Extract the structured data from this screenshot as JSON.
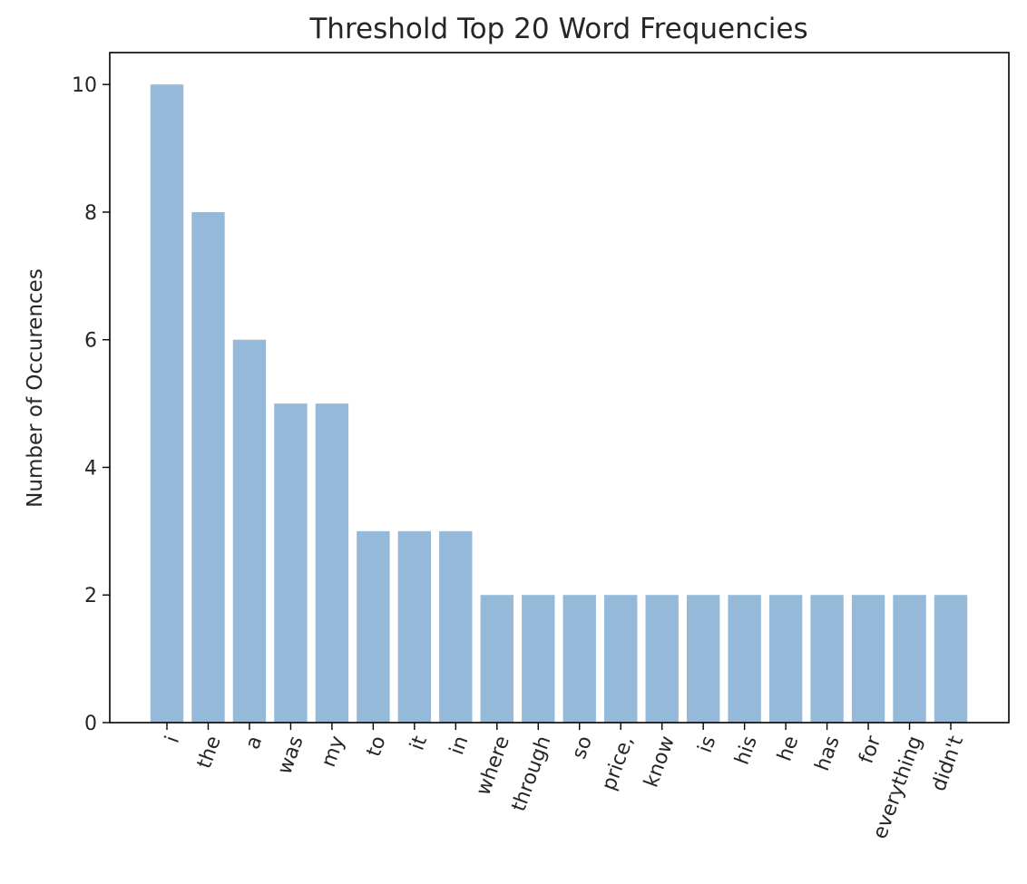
{
  "chart_data": {
    "type": "bar",
    "title": "Threshold Top 20 Word Frequencies",
    "xlabel": "",
    "ylabel": "Number of Occurences",
    "categories": [
      "i",
      "the",
      "a",
      "was",
      "my",
      "to",
      "it",
      "in",
      "where",
      "through",
      "so",
      "price,",
      "know",
      "is",
      "his",
      "he",
      "has",
      "for",
      "everything",
      "didn't"
    ],
    "values": [
      10,
      8,
      6,
      5,
      5,
      3,
      3,
      3,
      2,
      2,
      2,
      2,
      2,
      2,
      2,
      2,
      2,
      2,
      2,
      2
    ],
    "ylim": [
      0,
      10.5
    ],
    "yticks": [
      "0",
      "2",
      "4",
      "6",
      "8",
      "10"
    ],
    "xtick_rotation_deg": 70,
    "grid": false,
    "legend": "none",
    "colors": {
      "bar": "#94b9d9",
      "axis": "#000000",
      "text": "#262626"
    }
  }
}
